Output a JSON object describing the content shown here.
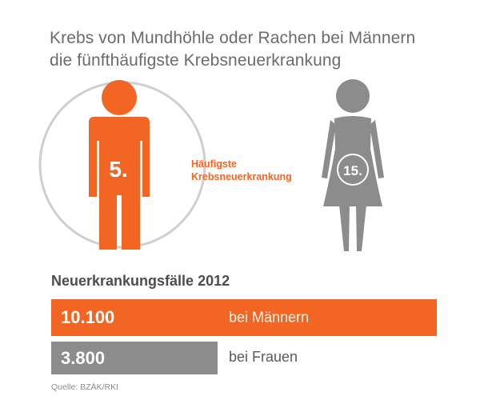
{
  "title": {
    "line1": "Krebs von Mundhöhle oder Rachen bei Männern",
    "line2": "die fünfthäufigste Krebsneuerkrankung"
  },
  "men_figure": {
    "rank": "5.",
    "color": "#f26522",
    "icon": "man-icon"
  },
  "women_figure": {
    "rank": "15.",
    "color": "#8c8c8c",
    "icon": "woman-icon"
  },
  "rank_label": {
    "line1": "Häufigste",
    "line2": "Krebsneuerkrankung"
  },
  "section_heading": "Neuerkrankungsfälle 2012",
  "bars": {
    "men": {
      "value": "10.100",
      "label": "bei Männern",
      "color": "#f26522"
    },
    "women": {
      "value": "3.800",
      "label": "bei Frauen",
      "color": "#8c8c8c"
    }
  },
  "source": "Quelle: BZÄK/RKI"
}
